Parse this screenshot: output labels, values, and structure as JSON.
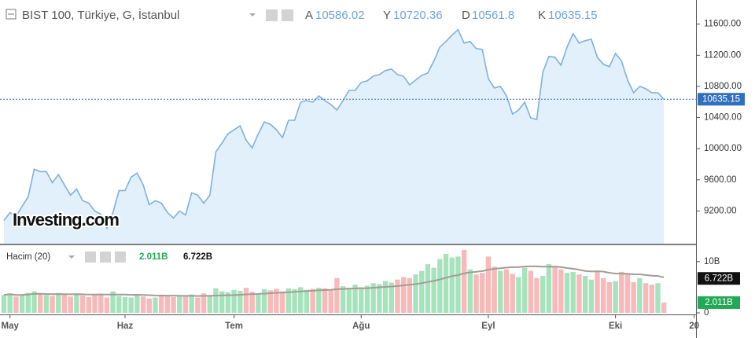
{
  "chart_data": [
    {
      "type": "area",
      "title": "BIST 100, Türkiye, G, İstanbul",
      "ohlc": [
        {
          "label": "A",
          "value": 10586.02
        },
        {
          "label": "Y",
          "value": 10720.36
        },
        {
          "label": "D",
          "value": 10561.8
        },
        {
          "label": "K",
          "value": 10635.15
        }
      ],
      "watermark": "Investing.com",
      "color": "#7eb1dc",
      "fill_color": "#e2f0fb",
      "last_color": "#2f6fc0",
      "values": [
        9078,
        9180,
        9129,
        9261,
        9382,
        9737,
        9706,
        9706,
        9564,
        9666,
        9534,
        9402,
        9483,
        9332,
        9301,
        9200,
        9159,
        8977,
        9180,
        9463,
        9463,
        9635,
        9686,
        9534,
        9281,
        9332,
        9301,
        9180,
        9109,
        9200,
        9149,
        9433,
        9402,
        9301,
        9402,
        9959,
        10071,
        10192,
        10243,
        10294,
        10111,
        10010,
        10192,
        10344,
        10314,
        10243,
        10142,
        10365,
        10365,
        10597,
        10618,
        10597,
        10678,
        10618,
        10567,
        10496,
        10618,
        10749,
        10749,
        10851,
        10871,
        10932,
        10952,
        11003,
        11023,
        10952,
        10932,
        10820,
        10881,
        10942,
        10972,
        11124,
        11306,
        11377,
        11458,
        11529,
        11357,
        11377,
        11286,
        11276,
        10901,
        10780,
        10800,
        10678,
        10446,
        10496,
        10597,
        10395,
        10375,
        10982,
        11185,
        11175,
        11073,
        11306,
        11478,
        11357,
        11387,
        11408,
        11175,
        11084,
        11053,
        11225,
        11124,
        10881,
        10719,
        10800,
        10770,
        10719,
        10719,
        10635.15
      ],
      "xlim": [
        -0.65,
        114.3
      ],
      "ylim": [
        8780,
        11910
      ],
      "yticks": [
        {
          "value": 9200,
          "label": "9200.00"
        },
        {
          "value": 9600,
          "label": "9600.00"
        },
        {
          "value": 10000,
          "label": "10000.00"
        },
        {
          "value": 10400,
          "label": "10400.00"
        },
        {
          "value": 10800,
          "label": "10800.00"
        },
        {
          "value": 11200,
          "label": "11200.00"
        },
        {
          "value": 11600,
          "label": "11600.00"
        }
      ]
    },
    {
      "type": "bar",
      "title": "Hacim (20)",
      "ma_period": 20,
      "up_color": "#a6e3bd",
      "down_color": "#f7b9b9",
      "ma_color": "#a39d94",
      "legend": [
        {
          "value": 2.011,
          "label": "2.011B",
          "color": "#22a956"
        },
        {
          "value": 6.722,
          "label": "6.722B",
          "color": "#111111"
        }
      ],
      "values": [
        3.5,
        3.8,
        3.2,
        3.6,
        3.9,
        4.2,
        3.8,
        3.5,
        3.3,
        3.9,
        3.6,
        3.2,
        3.8,
        3.4,
        3.1,
        3.6,
        3.7,
        3.0,
        4.2,
        3.3,
        3.1,
        3.0,
        3.4,
        3.2,
        2.8,
        3.0,
        3.5,
        3.3,
        3.1,
        3.4,
        3.2,
        3.6,
        3.0,
        3.8,
        3.3,
        4.8,
        4.2,
        4.0,
        4.5,
        4.3,
        4.9,
        4.1,
        3.8,
        4.6,
        4.4,
        4.7,
        4.2,
        4.8,
        4.6,
        5.0,
        4.5,
        4.7,
        4.9,
        4.8,
        4.6,
        6.8,
        5.2,
        4.9,
        5.5,
        5.0,
        5.3,
        5.8,
        5.6,
        6.2,
        5.9,
        6.5,
        7.0,
        6.8,
        7.5,
        8.2,
        9.5,
        8.8,
        10.5,
        11.5,
        10.8,
        11.0,
        12.3,
        8.5,
        7.5,
        7.8,
        11.0,
        9.0,
        8.2,
        8.5,
        7.6,
        7.0,
        8.8,
        8.2,
        6.8,
        7.2,
        9.5,
        9.0,
        8.5,
        7.8,
        8.0,
        7.5,
        7.2,
        6.5,
        8.2,
        6.8,
        6.0,
        6.2,
        8.0,
        7.6,
        6.0,
        6.8,
        5.8,
        5.5,
        5.8,
        2.011
      ],
      "xlim": [
        -0.65,
        114.3
      ],
      "xticks": [
        {
          "value": 1,
          "label": "May"
        },
        {
          "value": 20,
          "label": "Haz"
        },
        {
          "value": 38,
          "label": "Tem"
        },
        {
          "value": 59,
          "label": "Ağu"
        },
        {
          "value": 80,
          "label": "Eyl"
        },
        {
          "value": 101,
          "label": "Eki"
        },
        {
          "value": 114,
          "label": "20"
        }
      ],
      "ylim": [
        -0.3,
        13.2
      ],
      "yticks": [
        {
          "value": 10,
          "label": "10B"
        },
        0
      ]
    }
  ]
}
